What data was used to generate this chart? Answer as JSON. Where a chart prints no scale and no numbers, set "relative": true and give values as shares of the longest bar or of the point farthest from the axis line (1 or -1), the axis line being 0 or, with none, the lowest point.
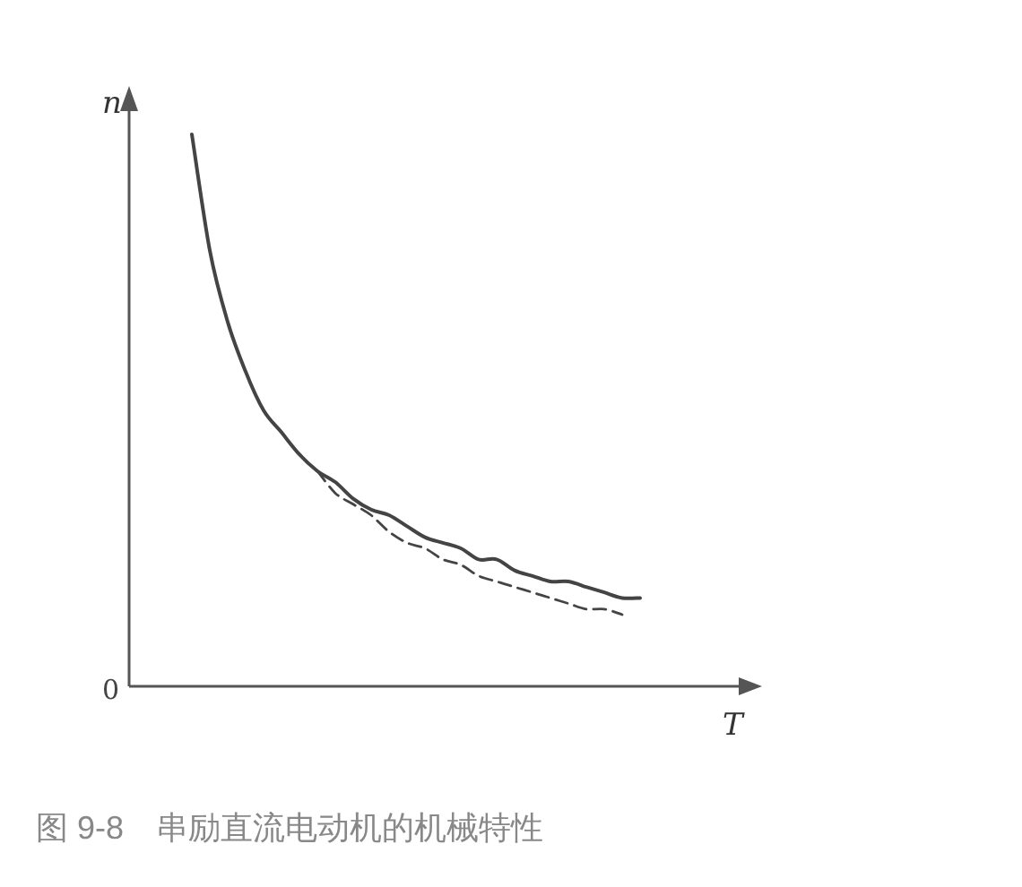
{
  "chart_data": {
    "type": "line",
    "relative": true,
    "title": "图 9-8　串励直流电动机的机械特性",
    "xlabel": "T",
    "ylabel": "n",
    "annotations": [
      "0"
    ],
    "categories": [
      null,
      null,
      null,
      null,
      null,
      null,
      null,
      null,
      null,
      null,
      null,
      null,
      null,
      null,
      null,
      null,
      null,
      null,
      null,
      null,
      null,
      null,
      null,
      null,
      null,
      null
    ],
    "series": [
      {
        "color": "#444444",
        "line_style": "solid",
        "values": [
          1.0,
          0.79,
          0.66,
          0.57,
          0.5,
          0.46,
          0.42,
          0.39,
          0.37,
          0.34,
          0.32,
          0.31,
          0.29,
          0.27,
          0.26,
          0.25,
          0.23,
          0.23,
          0.21,
          0.2,
          0.19,
          0.19,
          0.18,
          0.17,
          0.16,
          0.16
        ]
      },
      {
        "color": "#444444",
        "line_style": "dashed",
        "values": [
          null,
          null,
          null,
          null,
          null,
          null,
          null,
          0.39,
          0.35,
          0.33,
          0.31,
          0.28,
          0.26,
          0.25,
          0.23,
          0.22,
          0.2,
          0.19,
          0.18,
          0.17,
          0.16,
          0.15,
          0.14,
          0.14,
          0.13,
          null
        ]
      }
    ]
  }
}
